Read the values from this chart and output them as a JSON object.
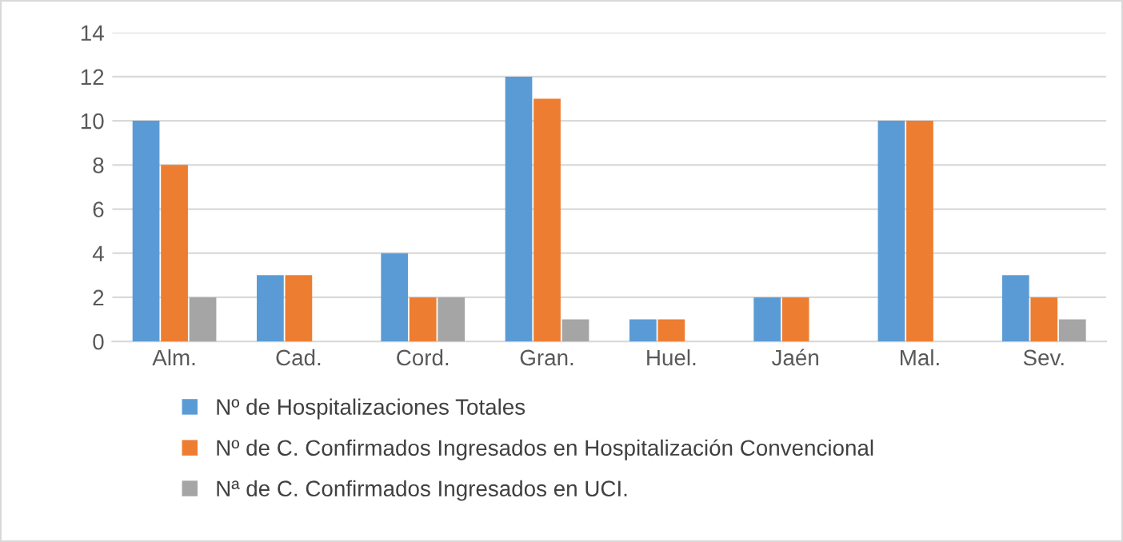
{
  "chart_data": {
    "type": "bar",
    "categories": [
      "Alm.",
      "Cad.",
      "Cord.",
      "Gran.",
      "Huel.",
      "Jaén",
      "Mal.",
      "Sev."
    ],
    "series": [
      {
        "name": "Nº de Hospitalizaciones Totales",
        "color": "#5b9bd5",
        "values": [
          10,
          3,
          4,
          12,
          1,
          2,
          10,
          3
        ]
      },
      {
        "name": "Nº de C. Confirmados Ingresados en Hospitalización Convencional",
        "color": "#ed7d31",
        "values": [
          8,
          3,
          2,
          11,
          1,
          2,
          10,
          2
        ]
      },
      {
        "name": "Nª de C. Confirmados Ingresados en UCI.",
        "color": "#a5a5a5",
        "values": [
          2,
          0,
          2,
          1,
          0,
          0,
          0,
          1
        ]
      }
    ],
    "ylim": [
      0,
      14
    ],
    "yticks": [
      0,
      2,
      4,
      6,
      8,
      10,
      12,
      14
    ],
    "grid": "y",
    "legend": "bottom"
  }
}
